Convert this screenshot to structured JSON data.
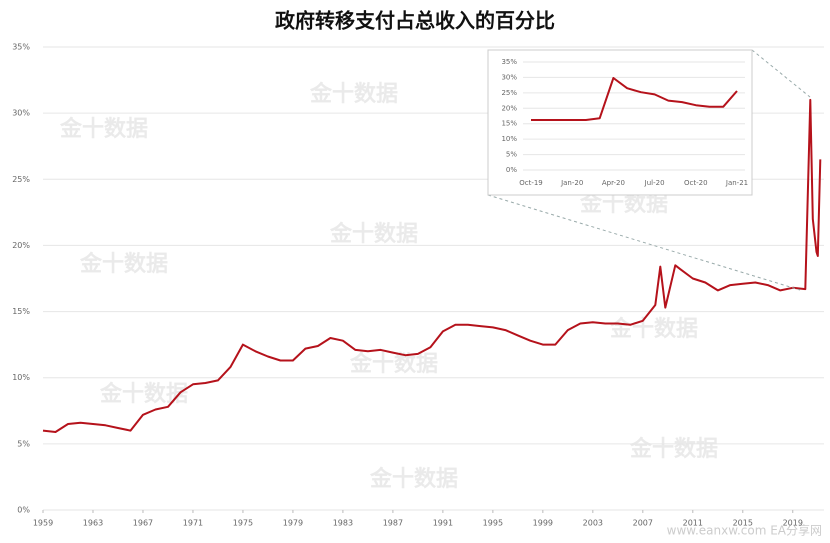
{
  "chart_data": [
    {
      "type": "line",
      "title": "政府转移支付占总收入的百分比",
      "x": [
        1959,
        1960,
        1961,
        1962,
        1963,
        1964,
        1965,
        1966,
        1967,
        1968,
        1969,
        1970,
        1971,
        1972,
        1973,
        1974,
        1975,
        1976,
        1977,
        1978,
        1979,
        1980,
        1981,
        1982,
        1983,
        1984,
        1985,
        1986,
        1987,
        1988,
        1989,
        1990,
        1991,
        1992,
        1993,
        1994,
        1995,
        1996,
        1997,
        1998,
        1999,
        2000,
        2001,
        2002,
        2003,
        2004,
        2005,
        2006,
        2007,
        2008,
        2008.4,
        2008.8,
        2009.6,
        2010,
        2011,
        2012,
        2013,
        2014,
        2015,
        2016,
        2017,
        2018,
        2019,
        2020,
        2020.4,
        2020.6,
        2020.9,
        2021,
        2021.2
      ],
      "series": [
        {
          "name": "政府转移支付占总收入的百分比",
          "color": "#b5121b",
          "values": [
            6.0,
            5.9,
            6.5,
            6.6,
            6.5,
            6.4,
            6.2,
            6.0,
            7.2,
            7.6,
            7.8,
            8.9,
            9.5,
            9.6,
            9.8,
            10.8,
            12.5,
            12.0,
            11.6,
            11.3,
            11.3,
            12.2,
            12.4,
            13.0,
            12.8,
            12.1,
            12.0,
            12.1,
            11.9,
            11.7,
            11.8,
            12.3,
            13.5,
            14.0,
            14.0,
            13.9,
            13.8,
            13.6,
            13.2,
            12.8,
            12.5,
            12.5,
            13.6,
            14.1,
            14.2,
            14.1,
            14.1,
            14.0,
            14.3,
            15.5,
            18.4,
            15.3,
            18.5,
            18.2,
            17.5,
            17.2,
            16.6,
            17.0,
            17.1,
            17.2,
            17.0,
            16.6,
            16.8,
            16.7,
            31.0,
            22.0,
            19.5,
            19.2,
            26.5
          ]
        }
      ],
      "xlim": [
        1959,
        2021.5
      ],
      "xticks": [
        1959,
        1963,
        1967,
        1971,
        1975,
        1979,
        1983,
        1987,
        1991,
        1995,
        1999,
        2003,
        2007,
        2011,
        2015,
        2019
      ],
      "ylim": [
        0,
        35
      ],
      "yticks": [
        {
          "value": 0,
          "label": "0%"
        },
        {
          "value": 5,
          "label": "5%"
        },
        {
          "value": 10,
          "label": "10%"
        },
        {
          "value": 15,
          "label": "15%"
        },
        {
          "value": 20,
          "label": "20%"
        },
        {
          "value": 25,
          "label": "25%"
        },
        {
          "value": 30,
          "label": "30%"
        },
        {
          "value": 35,
          "label": "35%"
        }
      ],
      "grid": true
    },
    {
      "type": "line",
      "categories": [
        "Oct-19",
        null,
        null,
        "Jan-20",
        null,
        null,
        "Apr-20",
        null,
        null,
        "Jul-20",
        null,
        null,
        "Oct-20",
        null,
        null,
        "Jan-21"
      ],
      "series": [
        {
          "name": "政府转移支付占总收入的百分比",
          "color": "#b5121b",
          "values": [
            16.2,
            16.2,
            16.2,
            16.2,
            16.2,
            16.8,
            29.8,
            26.5,
            25.2,
            24.5,
            22.5,
            22.0,
            21.0,
            20.5,
            20.5,
            25.6
          ]
        }
      ],
      "ylim": [
        0,
        35
      ],
      "yticks": [
        {
          "value": 0,
          "label": "0%"
        },
        {
          "value": 5,
          "label": "5%"
        },
        {
          "value": 10,
          "label": "10%"
        },
        {
          "value": 15,
          "label": "15%"
        },
        {
          "value": 20,
          "label": "20%"
        },
        {
          "value": 25,
          "label": "25%"
        },
        {
          "value": 30,
          "label": "30%"
        },
        {
          "value": 35,
          "label": "35%"
        }
      ],
      "grid": true
    }
  ],
  "watermark": "金十数据",
  "source_watermark": "www.eanxw.com EA分享网"
}
